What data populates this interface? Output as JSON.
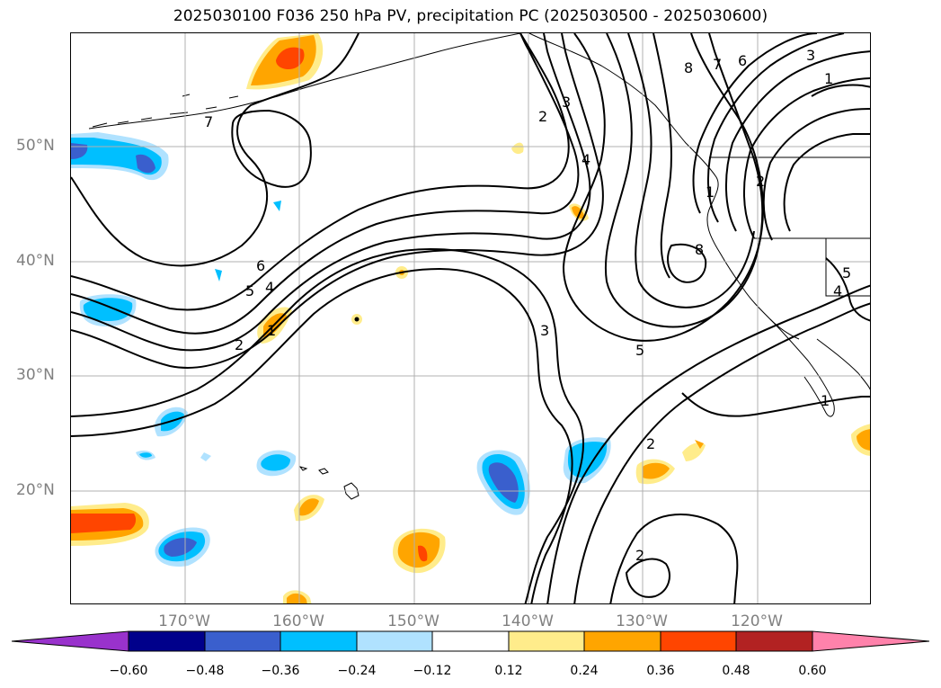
{
  "title": "2025030100 F036 250 hPa PV, precipitation PC (2025030500 - 2025030600)",
  "lat_labels": [
    "50°N",
    "40°N",
    "30°N",
    "20°N"
  ],
  "lon_labels": [
    "170°W",
    "160°W",
    "150°W",
    "140°W",
    "130°W",
    "120°W"
  ],
  "colorbar": {
    "ticks": [
      "−0.60",
      "−0.48",
      "−0.36",
      "−0.24",
      "−0.12",
      "0.12",
      "0.24",
      "0.36",
      "0.48",
      "0.60"
    ],
    "colors": [
      "#9932cc",
      "#00008b",
      "#3a5fcd",
      "#00bfff",
      "#b0e2ff",
      "#ffffff",
      "#ffec8b",
      "#ffa500",
      "#ff4500",
      "#b22222",
      "#ff82ab"
    ]
  },
  "contour_labels": [
    "1",
    "2",
    "3",
    "4",
    "5",
    "6",
    "7",
    "8"
  ],
  "colors": {
    "lat_lon_label": "#808080",
    "gridline": "#b0b0b0",
    "contour": "#000000"
  }
}
